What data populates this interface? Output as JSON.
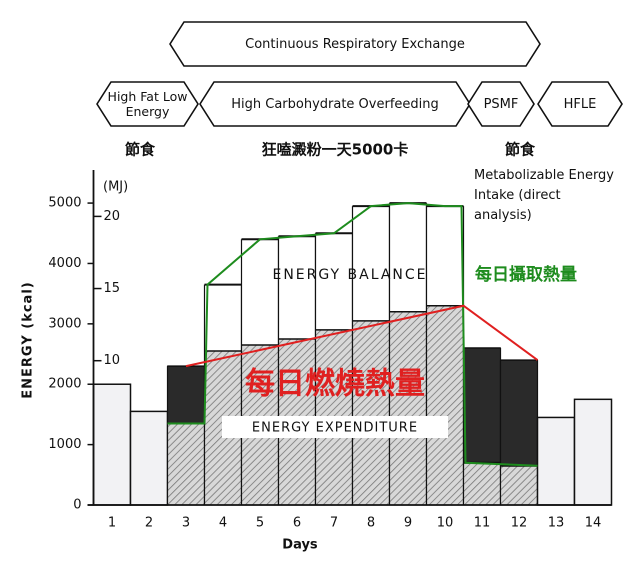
{
  "chart_data": {
    "type": "step-bar",
    "x_label": "Days",
    "y_label": "ENERGY (kcal)",
    "y2_label": "(MJ)",
    "categories": [
      "1",
      "2",
      "3",
      "4",
      "5",
      "6",
      "7",
      "8",
      "9",
      "10",
      "11",
      "12",
      "13",
      "14"
    ],
    "series": [
      {
        "name": "Metabolizable Energy Intake (direct analysis)",
        "color": "#111111",
        "values": [
          2000,
          1550,
          1350,
          3650,
          4400,
          4450,
          4500,
          4950,
          5000,
          4950,
          700,
          650,
          1450,
          1750
        ]
      },
      {
        "name": "ENERGY EXPENDITURE",
        "color": "#999999",
        "values": [
          2000,
          1550,
          2300,
          2550,
          2650,
          2750,
          2900,
          3050,
          3200,
          3300,
          2600,
          2400,
          1450,
          1750
        ]
      }
    ],
    "ylim": [
      0,
      5200
    ],
    "yticks": [
      0,
      1000,
      2000,
      3000,
      4000,
      5000
    ],
    "y2lim": [
      0,
      21.76
    ],
    "y2ticks": [
      5,
      10,
      15,
      20
    ],
    "balance_label": "ENERGY BALANCE",
    "phases": [
      {
        "label": "Continuous Respiratory Exchange"
      },
      {
        "label": "High Fat Low Energy"
      },
      {
        "label": "High Carbohydrate Overfeeding"
      },
      {
        "label": "PSMF"
      },
      {
        "label": "HFLE"
      }
    ],
    "notes": [
      "節食",
      "狂嗑澱粉一天5000卡",
      "節食"
    ],
    "intake_annotation": {
      "text": "每日攝取熱量",
      "color": "#1e8c1e"
    },
    "expenditure_annotation": {
      "text": "每日燃燒熱量",
      "color": "#e02020"
    }
  }
}
